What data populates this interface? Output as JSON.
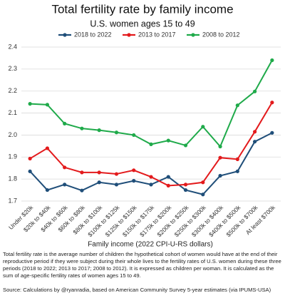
{
  "chart_data": {
    "type": "line",
    "title": "Total fertility rate by family income",
    "subtitle": "U.S. women ages 15 to 49",
    "x_label": "Family income (2022 CPI-U-RS dollars)",
    "categories": [
      "Under $20k",
      "$20k to $40k",
      "$40k to $60k",
      "$60k to $80k",
      "$80k to $100k",
      "$100k to $125k",
      "$125k to $150k",
      "$150k to $175k",
      "$175k to $200k",
      "$200k to $250k",
      "$250k to $300k",
      "$300k to $400k",
      "$400k to $500k",
      "$500k to $700k",
      "At least $700k"
    ],
    "series": [
      {
        "name": "2018 to 2022",
        "color": "#1f4e79",
        "values": [
          1.835,
          1.75,
          1.775,
          1.748,
          1.785,
          1.775,
          1.792,
          1.775,
          1.81,
          1.75,
          1.73,
          1.815,
          1.835,
          1.97,
          2.01
        ]
      },
      {
        "name": "2013 to 2017",
        "color": "#e31a1c",
        "values": [
          1.893,
          1.94,
          1.853,
          1.83,
          1.83,
          1.823,
          1.84,
          1.81,
          1.77,
          1.775,
          1.785,
          1.897,
          1.89,
          2.015,
          2.148
        ]
      },
      {
        "name": "2008 to 2012",
        "color": "#1faa4a",
        "values": [
          2.142,
          2.138,
          2.052,
          2.03,
          2.022,
          2.012,
          2.0,
          1.958,
          1.975,
          1.953,
          2.038,
          1.948,
          2.135,
          2.198,
          2.34
        ]
      }
    ],
    "ylim": [
      1.7,
      2.4
    ],
    "yticks": [
      1.7,
      1.8,
      1.9,
      {
        "value": 2,
        "label": "2.0"
      },
      2.1,
      2.2,
      2.3,
      2.4
    ],
    "grid": true,
    "legend": "top"
  },
  "notes": [
    "Total fertility rate is the average number of children the hypothetical cohort of women would have at the end of their reproductive period if they were subject during their whole lives to the fertility rates of U.S. women during these three periods (2018 to 2022; 2013 to 2017; 2008 to 2012). It is expressed as children per woman. It is calculated as the sum of age-specific fertility rates of women ages 15 to 49.",
    "Source: Calculations by @ryanradia, based on American Community Survey 5-year estimates (via IPUMS-USA)"
  ]
}
